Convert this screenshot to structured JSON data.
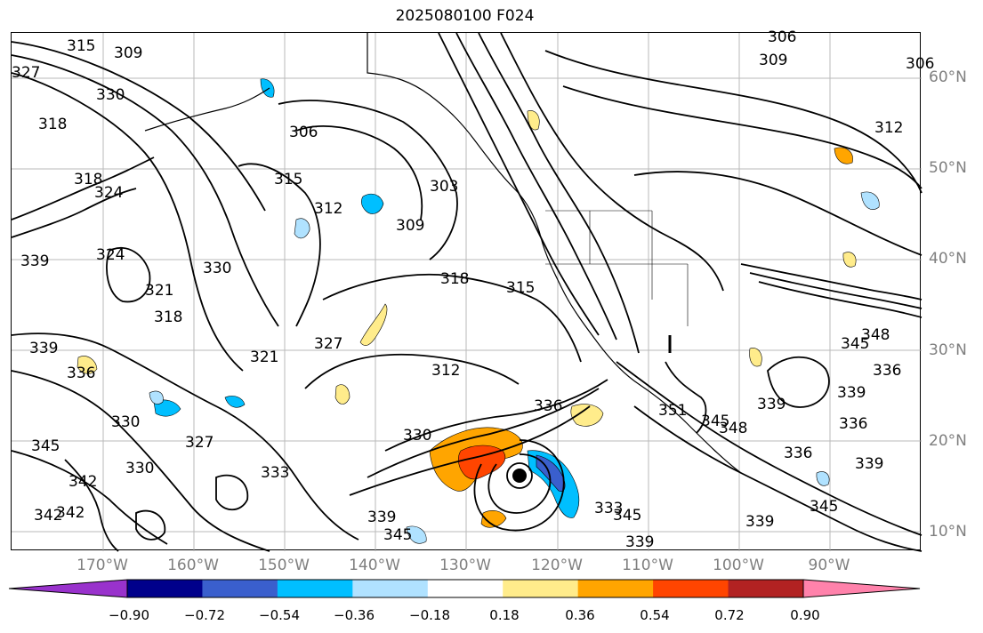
{
  "title": "2025080100 F024",
  "latitude_labels": [
    "60°N",
    "50°N",
    "40°N",
    "30°N",
    "20°N",
    "10°N"
  ],
  "longitude_labels": [
    "170°W",
    "160°W",
    "150°W",
    "140°W",
    "130°W",
    "120°W",
    "110°W",
    "100°W",
    "90°W"
  ],
  "colorbar": {
    "colors": [
      "#9932cc",
      "#00008b",
      "#3a5fcd",
      "#00bfff",
      "#b0e2ff",
      "#ffffff",
      "#ffec8b",
      "#ffa500",
      "#ff4500",
      "#b22222",
      "#ff82ab"
    ],
    "tick_labels": [
      "−0.90",
      "−0.72",
      "−0.54",
      "−0.36",
      "−0.18",
      "0.18",
      "0.36",
      "0.54",
      "0.72",
      "0.90"
    ]
  },
  "contour_labels": [
    "315",
    "309",
    "327",
    "330",
    "318",
    "318",
    "324",
    "339",
    "324",
    "330",
    "321",
    "318",
    "306",
    "315",
    "312",
    "303",
    "309",
    "318",
    "315",
    "327",
    "321",
    "312",
    "339",
    "336",
    "330",
    "327",
    "345",
    "330",
    "342",
    "342",
    "342",
    "333",
    "330",
    "336",
    "339",
    "345",
    "333",
    "345",
    "339",
    "351",
    "345",
    "348",
    "339",
    "345",
    "348",
    "339",
    "336",
    "336",
    "339",
    "336",
    "345",
    "339",
    "309",
    "306",
    "312",
    "306"
  ],
  "colors": {
    "contour": "#000000",
    "coastline": "#000000",
    "grid": "#a9a9a9",
    "axis_label": "#7f7f7f"
  },
  "marker": "storm-center-dot"
}
